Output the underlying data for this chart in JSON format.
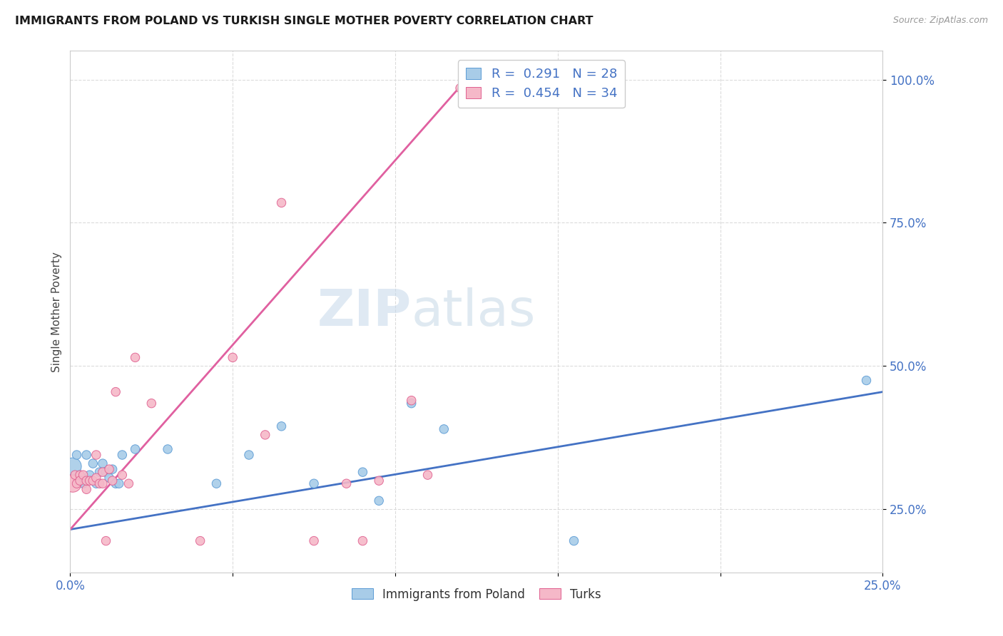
{
  "title": "IMMIGRANTS FROM POLAND VS TURKISH SINGLE MOTHER POVERTY CORRELATION CHART",
  "source": "Source: ZipAtlas.com",
  "ylabel": "Single Mother Poverty",
  "xlim": [
    0.0,
    0.25
  ],
  "ylim": [
    0.14,
    1.05
  ],
  "watermark_zip": "ZIP",
  "watermark_atlas": "atlas",
  "legend_blue_r": 0.291,
  "legend_blue_n": 28,
  "legend_pink_r": 0.454,
  "legend_pink_n": 34,
  "blue_color": "#a8cce8",
  "pink_color": "#f5b8c8",
  "blue_edge_color": "#5b9bd5",
  "pink_edge_color": "#e06090",
  "blue_line_color": "#4472c4",
  "pink_line_color": "#e060a0",
  "legend_bottom_blue": "Immigrants from Poland",
  "legend_bottom_pink": "Turks",
  "blue_points_x": [
    0.0008,
    0.002,
    0.003,
    0.004,
    0.005,
    0.006,
    0.007,
    0.008,
    0.009,
    0.01,
    0.011,
    0.012,
    0.013,
    0.014,
    0.015,
    0.016,
    0.02,
    0.03,
    0.045,
    0.055,
    0.065,
    0.075,
    0.09,
    0.095,
    0.105,
    0.115,
    0.155,
    0.245
  ],
  "blue_points_y": [
    0.325,
    0.345,
    0.31,
    0.295,
    0.345,
    0.31,
    0.33,
    0.295,
    0.315,
    0.33,
    0.315,
    0.305,
    0.32,
    0.295,
    0.295,
    0.345,
    0.355,
    0.355,
    0.295,
    0.345,
    0.395,
    0.295,
    0.315,
    0.265,
    0.435,
    0.39,
    0.195,
    0.475
  ],
  "blue_points_size": [
    300,
    80,
    80,
    80,
    80,
    80,
    80,
    80,
    80,
    80,
    80,
    80,
    80,
    80,
    80,
    80,
    80,
    80,
    80,
    80,
    80,
    80,
    80,
    80,
    80,
    80,
    80,
    80
  ],
  "pink_points_x": [
    0.0008,
    0.0015,
    0.002,
    0.003,
    0.003,
    0.004,
    0.005,
    0.005,
    0.006,
    0.007,
    0.008,
    0.008,
    0.009,
    0.01,
    0.01,
    0.011,
    0.012,
    0.013,
    0.014,
    0.016,
    0.018,
    0.02,
    0.025,
    0.04,
    0.05,
    0.06,
    0.065,
    0.075,
    0.085,
    0.09,
    0.095,
    0.105,
    0.11,
    0.12
  ],
  "pink_points_y": [
    0.295,
    0.31,
    0.295,
    0.31,
    0.3,
    0.31,
    0.285,
    0.3,
    0.3,
    0.3,
    0.345,
    0.305,
    0.295,
    0.315,
    0.295,
    0.195,
    0.32,
    0.3,
    0.455,
    0.31,
    0.295,
    0.515,
    0.435,
    0.195,
    0.515,
    0.38,
    0.785,
    0.195,
    0.295,
    0.195,
    0.3,
    0.44,
    0.31,
    0.985
  ],
  "pink_points_size": [
    300,
    80,
    80,
    80,
    80,
    80,
    80,
    80,
    80,
    80,
    80,
    80,
    80,
    80,
    80,
    80,
    80,
    80,
    80,
    80,
    80,
    80,
    80,
    80,
    80,
    80,
    80,
    80,
    80,
    80,
    80,
    80,
    80,
    80
  ],
  "blue_line_x": [
    0.0,
    0.25
  ],
  "blue_line_y": [
    0.215,
    0.455
  ],
  "pink_line_x": [
    0.0,
    0.125
  ],
  "pink_line_y": [
    0.215,
    1.02
  ],
  "x_ticks": [
    0.0,
    0.05,
    0.1,
    0.15,
    0.2,
    0.25
  ],
  "x_tick_labels": [
    "0.0%",
    "",
    "",
    "",
    "",
    "25.0%"
  ],
  "y_ticks": [
    0.25,
    0.5,
    0.75,
    1.0
  ],
  "y_tick_labels": [
    "25.0%",
    "50.0%",
    "75.0%",
    "100.0%"
  ],
  "grid_color": "#d8d8d8",
  "tick_color": "#4472c4",
  "spine_color": "#cccccc"
}
